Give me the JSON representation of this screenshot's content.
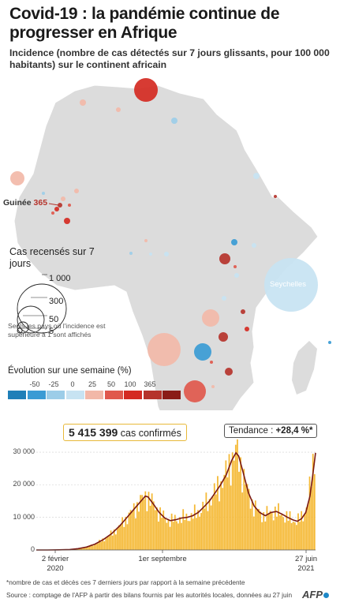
{
  "title": "Covid-19 :  la pandémie continue de progresser en Afrique",
  "subtitle": "Incidence (nombre de cas détectés sur 7 jours glissants, pour 100 000 habitants) sur le continent africain",
  "map": {
    "guinee_name": "Guinée",
    "guinee_value": "365",
    "seychelles_label": "Seychelles",
    "bubbles": [
      {
        "cx": 185,
        "cy": 114,
        "r": 15,
        "color": "#d42a22"
      },
      {
        "cx": 105,
        "cy": 130,
        "r": 4,
        "color": "#f2b8a8"
      },
      {
        "cx": 150,
        "cy": 139,
        "r": 3,
        "color": "#f2b8a8"
      },
      {
        "cx": 221,
        "cy": 153,
        "r": 4,
        "color": "#9ccde8"
      },
      {
        "cx": 22,
        "cy": 226,
        "r": 9,
        "color": "#f2b8a8"
      },
      {
        "cx": 97,
        "cy": 242,
        "r": 3,
        "color": "#f2b8a8"
      },
      {
        "cx": 80,
        "cy": 252,
        "r": 3,
        "color": "#f2b8a8"
      },
      {
        "cx": 76,
        "cy": 260,
        "r": 3,
        "color": "#b5332b"
      },
      {
        "cx": 72,
        "cy": 265,
        "r": 3,
        "color": "#d42a22"
      },
      {
        "cx": 88,
        "cy": 260,
        "r": 2,
        "color": "#e0584c"
      },
      {
        "cx": 67,
        "cy": 270,
        "r": 2,
        "color": "#e0584c"
      },
      {
        "cx": 85,
        "cy": 280,
        "r": 4,
        "color": "#d42a22"
      },
      {
        "cx": 55,
        "cy": 245,
        "r": 2,
        "color": "#9ccde8"
      },
      {
        "cx": 325,
        "cy": 223,
        "r": 4,
        "color": "#c7e3f2"
      },
      {
        "cx": 349,
        "cy": 249,
        "r": 2,
        "color": "#b5332b"
      },
      {
        "cx": 185,
        "cy": 305,
        "r": 2,
        "color": "#f2b8a8"
      },
      {
        "cx": 297,
        "cy": 307,
        "r": 4,
        "color": "#3a9bd4"
      },
      {
        "cx": 322,
        "cy": 311,
        "r": 3,
        "color": "#c7e3f2"
      },
      {
        "cx": 166,
        "cy": 321,
        "r": 2,
        "color": "#9ccde8"
      },
      {
        "cx": 191,
        "cy": 322,
        "r": 2,
        "color": "#c7e3f2"
      },
      {
        "cx": 211,
        "cy": 322,
        "r": 3,
        "color": "#c7e3f2"
      },
      {
        "cx": 285,
        "cy": 328,
        "r": 7,
        "color": "#b5332b"
      },
      {
        "cx": 298,
        "cy": 338,
        "r": 2,
        "color": "#e0584c"
      },
      {
        "cx": 300,
        "cy": 349,
        "r": 3,
        "color": "#c7e3f2"
      },
      {
        "cx": 369,
        "cy": 361,
        "r": 34,
        "color": "#c7e3f2"
      },
      {
        "cx": 284,
        "cy": 378,
        "r": 3,
        "color": "#c7e3f2"
      },
      {
        "cx": 267,
        "cy": 403,
        "r": 11,
        "color": "#f2b8a8"
      },
      {
        "cx": 308,
        "cy": 395,
        "r": 3,
        "color": "#b5332b"
      },
      {
        "cx": 313,
        "cy": 417,
        "r": 3,
        "color": "#d42a22"
      },
      {
        "cx": 283,
        "cy": 427,
        "r": 6,
        "color": "#b5332b"
      },
      {
        "cx": 208,
        "cy": 443,
        "r": 21,
        "color": "#f2b8a8"
      },
      {
        "cx": 257,
        "cy": 446,
        "r": 11,
        "color": "#3a9bd4"
      },
      {
        "cx": 290,
        "cy": 471,
        "r": 5,
        "color": "#b5332b"
      },
      {
        "cx": 268,
        "cy": 459,
        "r": 2,
        "color": "#e0584c"
      },
      {
        "cx": 247,
        "cy": 496,
        "r": 14,
        "color": "#e0584c"
      },
      {
        "cx": 270,
        "cy": 490,
        "r": 2,
        "color": "#f2b8a8"
      },
      {
        "cx": 418,
        "cy": 434,
        "r": 2,
        "color": "#3a9bd4"
      }
    ]
  },
  "size_legend": {
    "title": "Cas recensés sur 7 jours",
    "items": [
      {
        "label": "1 000",
        "r": 31
      },
      {
        "label": "300",
        "r": 17
      },
      {
        "label": "50",
        "r": 7
      },
      {
        "label": "5",
        "r": 3
      }
    ],
    "note": "Seuls les pays où l'incidence est supérieure à 1 sont affichés"
  },
  "evolution_legend": {
    "title": "Évolution sur une semaine (%)",
    "ticks": [
      "-50",
      "-25",
      "0",
      "25",
      "50",
      "100",
      "365"
    ],
    "colors": [
      "#1f7fb8",
      "#3a9bd4",
      "#9ccde8",
      "#c7e3f2",
      "#f2b8a8",
      "#e0584c",
      "#d42a22",
      "#b5332b",
      "#8a1c17"
    ]
  },
  "confirmed": {
    "number": "5 415 399",
    "label": "cas confirmés"
  },
  "trend": {
    "label": "Tendance :",
    "value": "+28,4 %*"
  },
  "chart_data": {
    "type": "bar",
    "description_series": "daily cases (bars) with 7-day average (line)",
    "yticks": [
      0,
      10000,
      20000,
      30000
    ],
    "ytick_labels": [
      "0",
      "10 000",
      "20 000",
      "30 000"
    ],
    "ylim": [
      0,
      38000
    ],
    "xtick_labels": [
      {
        "top": "2 février",
        "bottom": "2020"
      },
      {
        "top": "1er septembre",
        "bottom": ""
      },
      {
        "top": "27 juin",
        "bottom": "2021"
      }
    ],
    "trend_line": [
      [
        0,
        0
      ],
      [
        0.04,
        10
      ],
      [
        0.08,
        40
      ],
      [
        0.12,
        150
      ],
      [
        0.15,
        400
      ],
      [
        0.18,
        900
      ],
      [
        0.21,
        1800
      ],
      [
        0.24,
        3200
      ],
      [
        0.27,
        5000
      ],
      [
        0.3,
        7500
      ],
      [
        0.33,
        10500
      ],
      [
        0.36,
        13500
      ],
      [
        0.38,
        15500
      ],
      [
        0.39,
        16500
      ],
      [
        0.4,
        16300
      ],
      [
        0.42,
        14000
      ],
      [
        0.44,
        11500
      ],
      [
        0.46,
        9800
      ],
      [
        0.48,
        9000
      ],
      [
        0.5,
        9300
      ],
      [
        0.52,
        9800
      ],
      [
        0.54,
        10000
      ],
      [
        0.56,
        10500
      ],
      [
        0.58,
        11500
      ],
      [
        0.6,
        13200
      ],
      [
        0.62,
        15000
      ],
      [
        0.64,
        17500
      ],
      [
        0.66,
        20000
      ],
      [
        0.68,
        23000
      ],
      [
        0.7,
        27500
      ],
      [
        0.715,
        29800
      ],
      [
        0.725,
        28800
      ],
      [
        0.74,
        24000
      ],
      [
        0.76,
        17500
      ],
      [
        0.78,
        13500
      ],
      [
        0.8,
        11500
      ],
      [
        0.82,
        10500
      ],
      [
        0.84,
        11500
      ],
      [
        0.86,
        11800
      ],
      [
        0.88,
        11000
      ],
      [
        0.9,
        10000
      ],
      [
        0.92,
        9200
      ],
      [
        0.935,
        8800
      ],
      [
        0.95,
        9600
      ],
      [
        0.965,
        11500
      ],
      [
        0.98,
        16500
      ],
      [
        0.99,
        23000
      ],
      [
        1.0,
        29800
      ]
    ]
  },
  "footnote": "*nombre de cas et décès ces 7 derniers jours par rapport à la semaine précédente",
  "source": "Source : comptage de l'AFP à partir des bilans fournis par les autorités locales, données au 27 juin",
  "logo": "AFP"
}
